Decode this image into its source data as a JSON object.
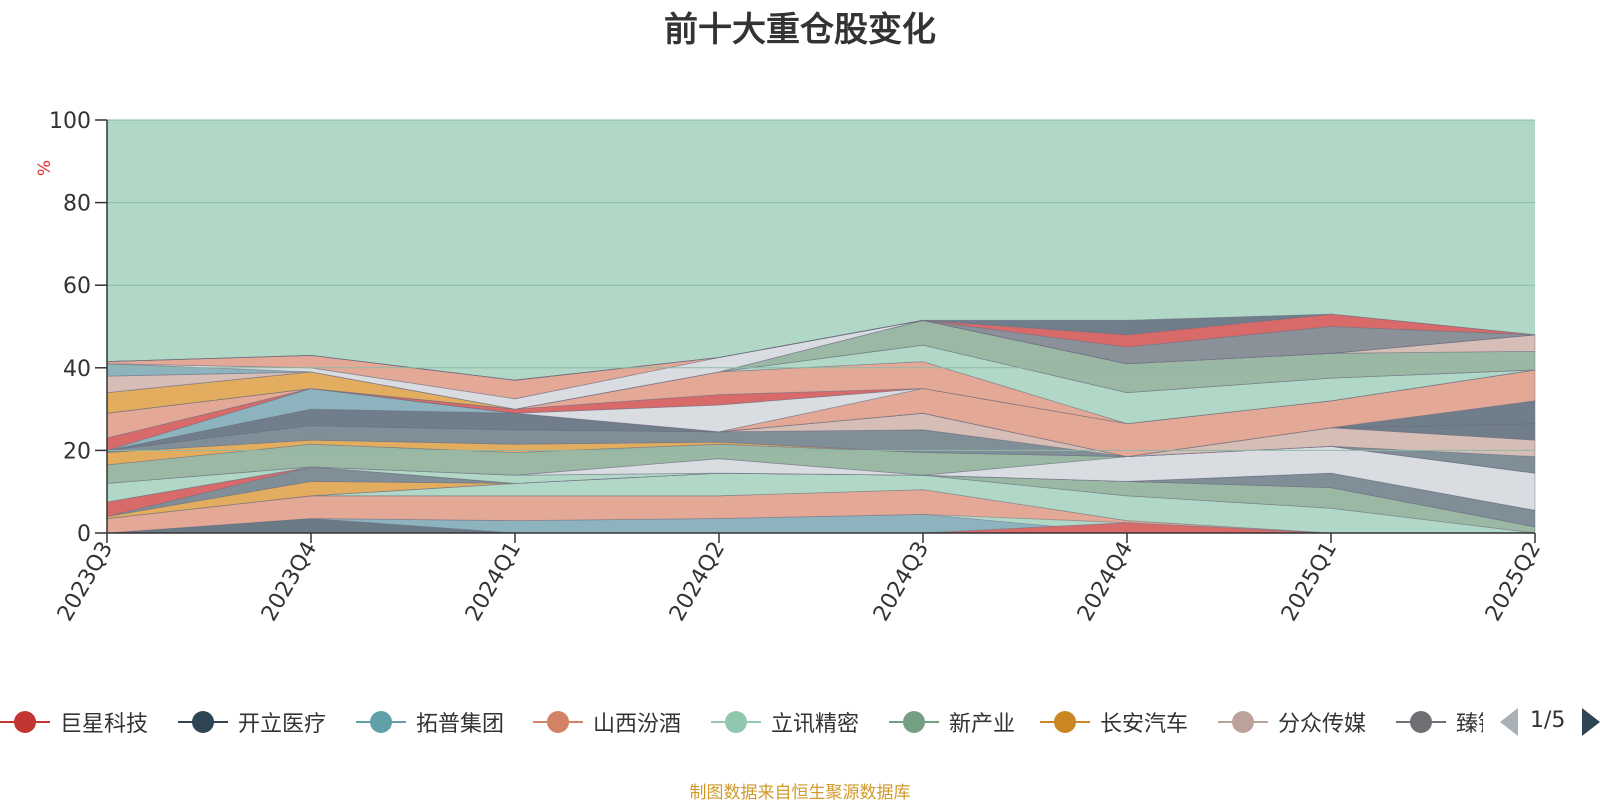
{
  "chart_data": {
    "type": "area",
    "title": "前十大重仓股变化",
    "ylabel": "%",
    "ylim": [
      0,
      100
    ],
    "yticks": [
      0,
      20,
      40,
      60,
      80,
      100
    ],
    "categories": [
      "2023Q3",
      "2023Q4",
      "2024Q1",
      "2024Q2",
      "2024Q3",
      "2024Q4",
      "2025Q1",
      "2025Q2"
    ],
    "grid": true,
    "background_color": "#b1d8c6",
    "layers": [
      {
        "color": "#6a7b86",
        "values": [
          [
            0,
            0
          ],
          [
            0,
            3.5
          ],
          [
            0,
            0
          ],
          [
            0,
            0
          ],
          [
            0,
            0
          ],
          [
            0,
            0
          ],
          [
            0,
            0
          ],
          [
            0,
            0
          ]
        ]
      },
      {
        "color": "#8db3be",
        "values": [
          [
            0,
            0
          ],
          [
            3.5,
            3.5
          ],
          [
            0,
            3
          ],
          [
            0,
            3.5
          ],
          [
            0,
            4.5
          ],
          [
            0,
            0
          ],
          [
            0,
            0
          ],
          [
            0,
            0
          ]
        ]
      },
      {
        "color": "#d96a6a",
        "values": [
          [
            0,
            0
          ],
          [
            0,
            0
          ],
          [
            0,
            0
          ],
          [
            0,
            0
          ],
          [
            0,
            0
          ],
          [
            0,
            2.5
          ],
          [
            0,
            0
          ],
          [
            0,
            0
          ]
        ]
      },
      {
        "color": "#e3a896",
        "values": [
          [
            0,
            3.5
          ],
          [
            3.5,
            9
          ],
          [
            3,
            9
          ],
          [
            3.5,
            9
          ],
          [
            4.5,
            10.5
          ],
          [
            2.5,
            3
          ],
          [
            0,
            0
          ],
          [
            0,
            0
          ]
        ]
      },
      {
        "color": "#b1d8c6",
        "values": [
          [
            3.5,
            3.5
          ],
          [
            9,
            9
          ],
          [
            9,
            12
          ],
          [
            9,
            14.5
          ],
          [
            10.5,
            14
          ],
          [
            3,
            9
          ],
          [
            0,
            6
          ],
          [
            0,
            0
          ]
        ]
      },
      {
        "color": "#9ab8a4",
        "values": [
          [
            3.5,
            3.5
          ],
          [
            9,
            9
          ],
          [
            12,
            12
          ],
          [
            14.5,
            14.5
          ],
          [
            14,
            14
          ],
          [
            9,
            12.5
          ],
          [
            6,
            11
          ],
          [
            0,
            1.5
          ]
        ]
      },
      {
        "color": "#e2ad5f",
        "values": [
          [
            3.5,
            4
          ],
          [
            9,
            12.5
          ],
          [
            12,
            12
          ],
          [
            14.5,
            14.5
          ],
          [
            14,
            14
          ],
          [
            12.5,
            12.5
          ],
          [
            11,
            11
          ],
          [
            1.5,
            1.5
          ]
        ]
      },
      {
        "color": "#7f8e97",
        "values": [
          [
            4,
            4
          ],
          [
            12.5,
            16
          ],
          [
            12,
            12
          ],
          [
            14.5,
            14.5
          ],
          [
            14,
            14
          ],
          [
            12.5,
            12.5
          ],
          [
            11,
            14.5
          ],
          [
            1.5,
            5.5
          ]
        ]
      },
      {
        "color": "#d96a6a",
        "values": [
          [
            4,
            7.5
          ],
          [
            16,
            16
          ],
          [
            12,
            12
          ],
          [
            14.5,
            14.5
          ],
          [
            14,
            14
          ],
          [
            12.5,
            12.5
          ],
          [
            14.5,
            14.5
          ],
          [
            5.5,
            5.5
          ]
        ]
      },
      {
        "color": "#b1d8c6",
        "values": [
          [
            7.5,
            12
          ],
          [
            16,
            16
          ],
          [
            12,
            14
          ],
          [
            14.5,
            14.5
          ],
          [
            14,
            14
          ],
          [
            12.5,
            12.5
          ],
          [
            14.5,
            14.5
          ],
          [
            5.5,
            5.5
          ]
        ]
      },
      {
        "color": "#d9dde2",
        "values": [
          [
            12,
            12
          ],
          [
            16,
            16
          ],
          [
            14,
            14
          ],
          [
            14.5,
            18
          ],
          [
            14,
            14
          ],
          [
            12.5,
            18.5
          ],
          [
            14.5,
            21
          ],
          [
            5.5,
            14.5
          ]
        ]
      },
      {
        "color": "#9ab8a4",
        "values": [
          [
            12,
            16.5
          ],
          [
            16,
            21.5
          ],
          [
            14,
            19.5
          ],
          [
            18,
            21.5
          ],
          [
            14,
            19.5
          ],
          [
            18.5,
            18.5
          ],
          [
            21,
            21
          ],
          [
            14.5,
            14.5
          ]
        ]
      },
      {
        "color": "#e2ad5f",
        "values": [
          [
            16.5,
            19.5
          ],
          [
            21.5,
            22.5
          ],
          [
            19.5,
            21.5
          ],
          [
            21.5,
            22
          ],
          [
            19.5,
            19.5
          ],
          [
            18.5,
            18.5
          ],
          [
            21,
            21
          ],
          [
            14.5,
            14.5
          ]
        ]
      },
      {
        "color": "#7f8e97",
        "values": [
          [
            19.5,
            20
          ],
          [
            22.5,
            26
          ],
          [
            21.5,
            25
          ],
          [
            22,
            24.5
          ],
          [
            19.5,
            25
          ],
          [
            18.5,
            18.5
          ],
          [
            21,
            21
          ],
          [
            14.5,
            18.5
          ]
        ]
      },
      {
        "color": "#d6bdb6",
        "values": [
          [
            20,
            20
          ],
          [
            26,
            26
          ],
          [
            25,
            25
          ],
          [
            24.5,
            24.5
          ],
          [
            25,
            29
          ],
          [
            18.5,
            18.5
          ],
          [
            21,
            25.5
          ],
          [
            18.5,
            22.5
          ]
        ]
      },
      {
        "color": "#6f7e8a",
        "values": [
          [
            20,
            20
          ],
          [
            26,
            30
          ],
          [
            25,
            29
          ],
          [
            24.5,
            24.5
          ],
          [
            29,
            29
          ],
          [
            18.5,
            18.5
          ],
          [
            25.5,
            25.5
          ],
          [
            22.5,
            26.5
          ]
        ]
      },
      {
        "color": "#8db3be",
        "values": [
          [
            20,
            20
          ],
          [
            30,
            35
          ],
          [
            29,
            29
          ],
          [
            24.5,
            24.5
          ],
          [
            29,
            29
          ],
          [
            18.5,
            18.5
          ],
          [
            25.5,
            25.5
          ],
          [
            26.5,
            26.5
          ]
        ]
      },
      {
        "color": "#d96a6a",
        "values": [
          [
            20,
            23
          ],
          [
            35,
            35
          ],
          [
            29,
            29
          ],
          [
            24.5,
            24.5
          ],
          [
            29,
            29
          ],
          [
            18.5,
            18.5
          ],
          [
            25.5,
            25.5
          ],
          [
            26.5,
            26.5
          ]
        ]
      },
      {
        "color": "#6f7e8a",
        "values": [
          [
            23,
            23
          ],
          [
            35,
            35
          ],
          [
            29,
            29
          ],
          [
            24.5,
            24.5
          ],
          [
            29,
            29
          ],
          [
            18.5,
            18.5
          ],
          [
            25.5,
            25.5
          ],
          [
            26.5,
            32
          ]
        ]
      },
      {
        "color": "#e3a896",
        "values": [
          [
            23,
            29
          ],
          [
            35,
            35
          ],
          [
            29,
            29
          ],
          [
            24.5,
            24.5
          ],
          [
            29,
            35
          ],
          [
            18.5,
            26.5
          ],
          [
            25.5,
            32
          ],
          [
            32,
            39.5
          ]
        ]
      },
      {
        "color": "#d9dde2",
        "values": [
          [
            29,
            29
          ],
          [
            35,
            35
          ],
          [
            29,
            29
          ],
          [
            24.5,
            31
          ],
          [
            35,
            35
          ],
          [
            26.5,
            26.5
          ],
          [
            32,
            32
          ],
          [
            39.5,
            39.5
          ]
        ]
      },
      {
        "color": "#d96a6a",
        "values": [
          [
            29,
            29
          ],
          [
            35,
            35
          ],
          [
            29,
            30
          ],
          [
            31,
            33.5
          ],
          [
            35,
            35
          ],
          [
            26.5,
            26.5
          ],
          [
            32,
            32
          ],
          [
            39.5,
            39.5
          ]
        ]
      },
      {
        "color": "#e3a896",
        "values": [
          [
            29,
            29
          ],
          [
            35,
            35
          ],
          [
            30,
            30
          ],
          [
            33.5,
            39
          ],
          [
            35,
            41.5
          ],
          [
            26.5,
            26.5
          ],
          [
            32,
            32
          ],
          [
            39.5,
            39.5
          ]
        ]
      },
      {
        "color": "#b1d8c6",
        "values": [
          [
            29,
            29
          ],
          [
            35,
            35
          ],
          [
            30,
            30
          ],
          [
            39,
            39
          ],
          [
            41.5,
            45.5
          ],
          [
            26.5,
            34
          ],
          [
            32,
            37.5
          ],
          [
            39.5,
            39.5
          ]
        ]
      },
      {
        "color": "#e2ad5f",
        "values": [
          [
            29,
            34
          ],
          [
            35,
            39
          ],
          [
            30,
            30
          ],
          [
            39,
            39
          ],
          [
            45.5,
            45.5
          ],
          [
            34,
            34
          ],
          [
            37.5,
            37.5
          ],
          [
            39.5,
            39.5
          ]
        ]
      },
      {
        "color": "#9ab8a4",
        "values": [
          [
            34,
            34
          ],
          [
            39,
            39
          ],
          [
            30,
            30
          ],
          [
            39,
            39
          ],
          [
            45.5,
            51.5
          ],
          [
            34,
            41
          ],
          [
            37.5,
            43.5
          ],
          [
            39.5,
            44
          ]
        ]
      },
      {
        "color": "#d6bdb6",
        "values": [
          [
            34,
            38
          ],
          [
            39,
            39
          ],
          [
            30,
            30
          ],
          [
            39,
            39
          ],
          [
            51.5,
            51.5
          ],
          [
            41,
            41
          ],
          [
            43.5,
            43.5
          ],
          [
            44,
            48
          ]
        ]
      },
      {
        "color": "#8db3be",
        "values": [
          [
            38,
            41
          ],
          [
            39,
            39
          ],
          [
            30,
            30
          ],
          [
            39,
            39
          ],
          [
            51.5,
            51.5
          ],
          [
            41,
            41
          ],
          [
            43.5,
            43.5
          ],
          [
            48,
            48
          ]
        ]
      },
      {
        "color": "#d9dde2",
        "values": [
          [
            41,
            41
          ],
          [
            39,
            40
          ],
          [
            30,
            32.5
          ],
          [
            39,
            42.5
          ],
          [
            51.5,
            51.5
          ],
          [
            41,
            41
          ],
          [
            43.5,
            43.5
          ],
          [
            48,
            48
          ]
        ]
      },
      {
        "color": "#e3a896",
        "values": [
          [
            41,
            41.5
          ],
          [
            40,
            43
          ],
          [
            32.5,
            37
          ],
          [
            42.5,
            42.5
          ],
          [
            51.5,
            51.5
          ],
          [
            41,
            41
          ],
          [
            43.5,
            43.5
          ],
          [
            48,
            48
          ]
        ]
      },
      {
        "color": "#8a9199",
        "values": [
          [
            41.5,
            41.5
          ],
          [
            43,
            43
          ],
          [
            37,
            37
          ],
          [
            42.5,
            42.5
          ],
          [
            51.5,
            51.5
          ],
          [
            41,
            45
          ],
          [
            43.5,
            50
          ],
          [
            48,
            48
          ]
        ]
      },
      {
        "color": "#d96a6a",
        "values": [
          [
            41.5,
            41.5
          ],
          [
            43,
            43
          ],
          [
            37,
            37
          ],
          [
            42.5,
            42.5
          ],
          [
            51.5,
            51.5
          ],
          [
            45,
            48
          ],
          [
            50,
            53
          ],
          [
            48,
            48
          ]
        ]
      },
      {
        "color": "#6f7e8a",
        "values": [
          [
            41.5,
            41.5
          ],
          [
            43,
            43
          ],
          [
            37,
            37
          ],
          [
            42.5,
            42.5
          ],
          [
            51.5,
            51.5
          ],
          [
            48,
            51.5
          ],
          [
            53,
            53
          ],
          [
            48,
            48
          ]
        ]
      }
    ]
  },
  "legend": {
    "items": [
      {
        "label": "巨星科技",
        "color": "#c23531"
      },
      {
        "label": "开立医疗",
        "color": "#2f4554"
      },
      {
        "label": "拓普集团",
        "color": "#61a0a8"
      },
      {
        "label": "山西汾酒",
        "color": "#d48265"
      },
      {
        "label": "立讯精密",
        "color": "#91c7ae"
      },
      {
        "label": "新产业",
        "color": "#749f83"
      },
      {
        "label": "长安汽车",
        "color": "#ca8622"
      },
      {
        "label": "分众传媒",
        "color": "#bda29a"
      },
      {
        "label": "臻镭科技",
        "color": "#6e7074"
      }
    ],
    "page": "1/5"
  },
  "source_note": "制图数据来自恒生聚源数据库"
}
